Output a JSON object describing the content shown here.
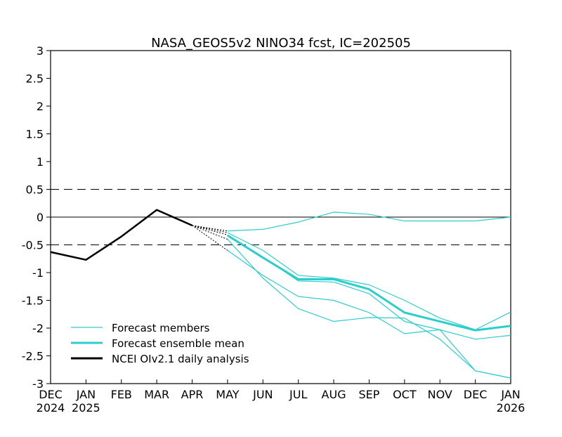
{
  "chart_data": {
    "type": "line",
    "title": "NASA_GEOS5v2 NINO34 fcst, IC=202505",
    "xlabel": "",
    "ylabel": "",
    "ylim": [
      -3,
      3
    ],
    "yticks": [
      "3",
      "2.5",
      "2",
      "1.5",
      "1",
      "0.5",
      "0",
      "-0.5",
      "-1",
      "-1.5",
      "-2",
      "-2.5",
      "-3"
    ],
    "x_months": [
      "DEC",
      "JAN",
      "FEB",
      "MAR",
      "APR",
      "MAY",
      "JUN",
      "JUL",
      "AUG",
      "SEP",
      "OCT",
      "NOV",
      "DEC",
      "JAN"
    ],
    "x_years": [
      {
        "index": 0,
        "label": "2024"
      },
      {
        "index": 1,
        "label": "2025"
      },
      {
        "index": 13,
        "label": "2026"
      }
    ],
    "reference_lines": [
      {
        "y": 0.5,
        "style": "dashed"
      },
      {
        "y": 0,
        "style": "solid"
      },
      {
        "y": -0.5,
        "style": "dashed"
      }
    ],
    "legend": {
      "placement": "bottom-left",
      "entries": [
        {
          "label": "Forecast members",
          "color": "#2ecdcd",
          "weight": "thin"
        },
        {
          "label": "Forecast ensemble mean",
          "color": "#2ecdcd",
          "weight": "thick"
        },
        {
          "label": "NCEI OIv2.1 daily analysis",
          "color": "#000000",
          "weight": "thick"
        }
      ]
    },
    "observed": {
      "name": "NCEI OIv2.1 daily analysis",
      "color": "#000000",
      "x": [
        0,
        1,
        2,
        3,
        4
      ],
      "y": [
        -0.63,
        -0.77,
        -0.35,
        0.13,
        -0.15
      ]
    },
    "connectors": {
      "color": "#000000",
      "style": "dotted",
      "from": [
        4,
        -0.15
      ],
      "to_y": [
        -0.25,
        -0.28,
        -0.32,
        -0.4,
        -0.6
      ]
    },
    "members": [
      {
        "x": [
          5,
          6,
          7,
          8,
          9,
          10,
          11,
          12,
          13
        ],
        "y": [
          -0.25,
          -0.22,
          -0.09,
          0.09,
          0.05,
          -0.07,
          -0.07,
          -0.07,
          0.0
        ]
      },
      {
        "x": [
          5,
          6,
          7,
          8,
          9,
          10,
          11,
          12,
          13
        ],
        "y": [
          -0.28,
          -0.6,
          -1.05,
          -1.1,
          -1.22,
          -1.5,
          -1.82,
          -2.03,
          -1.71
        ]
      },
      {
        "x": [
          5,
          6,
          7,
          8,
          9,
          10,
          11,
          12,
          13
        ],
        "y": [
          -0.32,
          -0.72,
          -1.15,
          -1.17,
          -1.38,
          -1.88,
          -2.03,
          -2.77,
          -2.9
        ]
      },
      {
        "x": [
          5,
          6,
          7,
          8,
          9,
          10,
          11,
          12,
          13
        ],
        "y": [
          -0.4,
          -1.1,
          -1.65,
          -1.88,
          -1.81,
          -1.82,
          -2.2,
          -2.77,
          -2.9
        ]
      },
      {
        "x": [
          5,
          6,
          7,
          8,
          9,
          10,
          11,
          12,
          13
        ],
        "y": [
          -0.6,
          -1.05,
          -1.43,
          -1.5,
          -1.72,
          -2.1,
          -2.03,
          -2.2,
          -2.13
        ]
      }
    ],
    "mean": {
      "name": "Forecast ensemble mean",
      "color": "#2ecdcd",
      "x": [
        5,
        6,
        7,
        8,
        9,
        10,
        11,
        12,
        13
      ],
      "y": [
        -0.33,
        -0.73,
        -1.12,
        -1.12,
        -1.3,
        -1.72,
        -1.88,
        -2.04,
        -1.96
      ]
    },
    "colors": {
      "forecast": "#2ecdcd",
      "analysis": "#000000",
      "axes": "#000000"
    }
  }
}
